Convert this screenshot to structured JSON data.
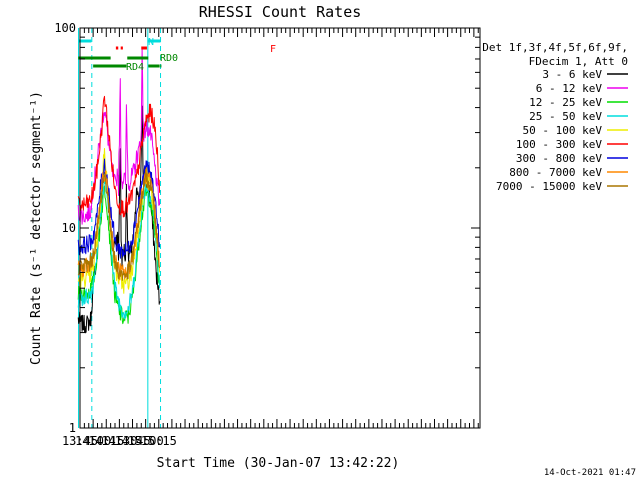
{
  "chart_data": {
    "type": "line",
    "title": "RHESSI Count Rates",
    "xlabel": "Start Time (30-Jan-07 13:42:22)",
    "ylabel": "Count Rate (s⁻¹ detector segment⁻¹)",
    "y_scale": "log",
    "ylim": [
      1,
      100
    ],
    "y_ticks": [
      {
        "v": 1,
        "label": "1"
      },
      {
        "v": 10,
        "label": "10"
      },
      {
        "v": 100,
        "label": "100"
      }
    ],
    "x_domain_min": [
      825,
      1282
    ],
    "x_ticks": [
      {
        "v": 825,
        "label": "13:45"
      },
      {
        "v": 840,
        "label": "14:00"
      },
      {
        "v": 855,
        "label": "14:15"
      },
      {
        "v": 870,
        "label": "14:30"
      },
      {
        "v": 885,
        "label": "14:45"
      },
      {
        "v": 900,
        "label": "15:00"
      },
      {
        "v": 915,
        "label": "15:15"
      }
    ],
    "legend_header": [
      "Det 1f,3f,4f,5f,6f,9f,",
      "FDecim 1, Att 0"
    ],
    "series": [
      {
        "name": "3 - 6 keV",
        "color": "#000000",
        "x": [
          823,
          828,
          832,
          836,
          838,
          839,
          841,
          845,
          847,
          849,
          851,
          853,
          855,
          857,
          860,
          863,
          866,
          868,
          869,
          871,
          872,
          873,
          875,
          877,
          878,
          880,
          882,
          884,
          886,
          888,
          890,
          892,
          894,
          895,
          896,
          897,
          898,
          900,
          901,
          903,
          906,
          908,
          910,
          912,
          913,
          914,
          916
        ],
        "y": [
          3.5,
          3.3,
          3.3,
          3.4,
          3.6,
          4.5,
          5.5,
          8,
          10,
          13,
          17,
          19,
          18,
          14,
          10,
          8,
          9,
          9,
          7,
          26,
          9,
          7,
          8,
          7,
          17,
          7,
          7.5,
          8,
          9,
          11,
          16,
          13,
          18,
          23,
          43,
          20,
          17,
          18,
          17,
          16,
          13,
          10,
          8,
          6,
          5.5,
          5,
          4.3
        ]
      },
      {
        "name": "6 - 12 keV",
        "color": "#ee00ee",
        "x": [
          823,
          828,
          832,
          836,
          838,
          839,
          841,
          845,
          847,
          849,
          851,
          853,
          855,
          857,
          860,
          863,
          866,
          868,
          869,
          871,
          872,
          873,
          875,
          877,
          878,
          880,
          882,
          884,
          886,
          888,
          890,
          892,
          894,
          895,
          896,
          897,
          898,
          900,
          901,
          903,
          906,
          908,
          910,
          912,
          913,
          914,
          916
        ],
        "y": [
          12,
          11.5,
          11.5,
          12,
          12.5,
          15,
          17,
          22,
          26,
          30,
          36,
          40,
          34,
          28,
          22,
          18,
          16,
          20,
          16,
          52,
          20,
          17,
          18,
          17,
          41,
          17,
          17,
          18,
          19,
          20,
          23,
          24,
          27,
          30,
          80,
          38,
          30,
          31,
          32,
          31,
          29,
          25,
          21,
          18,
          16,
          15,
          13
        ]
      },
      {
        "name": "12 - 25 keV",
        "color": "#00dd00",
        "x": [
          823,
          830,
          836,
          840,
          845,
          850,
          853,
          856,
          860,
          865,
          870,
          875,
          880,
          885,
          890,
          895,
          900,
          905,
          910,
          914,
          916
        ],
        "y": [
          4.6,
          4.7,
          4.8,
          5.3,
          7.5,
          12.5,
          16,
          13,
          8,
          4.5,
          3.8,
          3.5,
          3.6,
          4.5,
          7,
          11,
          15,
          14,
          10,
          6,
          5
        ]
      },
      {
        "name": "25 - 50 keV",
        "color": "#00dddd",
        "x": [
          823,
          830,
          836,
          840,
          845,
          850,
          853,
          856,
          860,
          865,
          870,
          875,
          880,
          885,
          890,
          895,
          900,
          905,
          910,
          914,
          916
        ],
        "y": [
          4.4,
          4.5,
          4.6,
          5.2,
          8,
          14,
          18,
          15,
          9,
          5,
          4.2,
          3.8,
          3.9,
          4.8,
          7.5,
          12,
          16.5,
          15,
          11,
          6.5,
          5
        ]
      },
      {
        "name": "50 - 100 keV",
        "color": "#eeee00",
        "x": [
          823,
          830,
          836,
          840,
          845,
          850,
          853,
          856,
          860,
          865,
          870,
          875,
          880,
          885,
          890,
          895,
          900,
          905,
          910,
          914,
          916
        ],
        "y": [
          5.5,
          5.6,
          5.7,
          6.2,
          9,
          16,
          26,
          17,
          10,
          6.2,
          5.5,
          5.2,
          5.3,
          6.2,
          9,
          13,
          18,
          16,
          12,
          7.5,
          6
        ]
      },
      {
        "name": "100 - 300 keV",
        "color": "#ff0000",
        "x": [
          823,
          830,
          836,
          840,
          845,
          850,
          853,
          856,
          860,
          865,
          870,
          875,
          880,
          885,
          890,
          895,
          900,
          905,
          908,
          911,
          914,
          916
        ],
        "y": [
          13,
          13,
          13.5,
          15,
          20,
          32,
          46,
          35,
          24,
          15.5,
          13,
          12.5,
          13,
          15,
          18,
          25,
          34,
          38,
          36,
          30,
          22,
          15
        ]
      },
      {
        "name": "300 - 800 keV",
        "color": "#0000dd",
        "x": [
          823,
          830,
          836,
          840,
          845,
          850,
          853,
          856,
          860,
          865,
          870,
          875,
          880,
          885,
          890,
          895,
          900,
          905,
          910,
          914,
          916
        ],
        "y": [
          8,
          8.2,
          8.4,
          9,
          12,
          18,
          21,
          18,
          12.5,
          8.5,
          7.8,
          7.6,
          7.8,
          9,
          12,
          16,
          20,
          19,
          15,
          10,
          8
        ]
      },
      {
        "name": "800 - 7000 keV",
        "color": "#ff8800",
        "x": [
          823,
          830,
          836,
          840,
          845,
          850,
          853,
          856,
          860,
          865,
          870,
          875,
          880,
          885,
          890,
          895,
          900,
          905,
          910,
          914,
          916
        ],
        "y": [
          6.2,
          6.3,
          6.5,
          7.2,
          10,
          16,
          19,
          16,
          10.5,
          6.8,
          6.1,
          5.9,
          6.1,
          7.2,
          10,
          14,
          18.5,
          17,
          13,
          8,
          6.5
        ]
      },
      {
        "name": "7000 - 15000 keV",
        "color": "#aa7700",
        "x": [
          823,
          830,
          836,
          840,
          845,
          850,
          853,
          856,
          860,
          865,
          870,
          875,
          880,
          885,
          890,
          895,
          900,
          905,
          910,
          914,
          916
        ],
        "y": [
          6.4,
          6.5,
          6.6,
          7.3,
          10,
          15.5,
          18.5,
          15.5,
          10,
          6.6,
          6,
          5.8,
          6,
          7,
          9.8,
          13.8,
          18,
          16.5,
          12.5,
          7.8,
          6.3
        ]
      }
    ],
    "annotations": {
      "N": {
        "label": "N",
        "color": "#00dddd",
        "segments": [
          [
            823,
            838
          ],
          [
            902,
            917
          ]
        ]
      },
      "F": {
        "label": "F",
        "color": "#ff0000",
        "segments": [
          [
            866,
            868.7
          ],
          [
            871.5,
            874
          ],
          [
            895,
            901.5
          ]
        ]
      },
      "RD0": {
        "label": "RD0",
        "color": "#008800",
        "segments": [
          [
            823,
            860
          ],
          [
            879,
            903
          ]
        ]
      },
      "RD4": {
        "label": "RD4",
        "color": "#008800",
        "segments": [
          [
            840,
            878
          ],
          [
            903,
            916
          ],
          [
            916.8,
            918
          ]
        ]
      }
    },
    "vlines": {
      "solid": {
        "color": "#00dddd",
        "x": [
          823.3,
          902.5
        ]
      },
      "dashed": {
        "color": "#00dddd",
        "x": [
          838.5,
          917
        ]
      }
    }
  },
  "footer": {
    "timestamp": "14-Oct-2021 01:47"
  }
}
